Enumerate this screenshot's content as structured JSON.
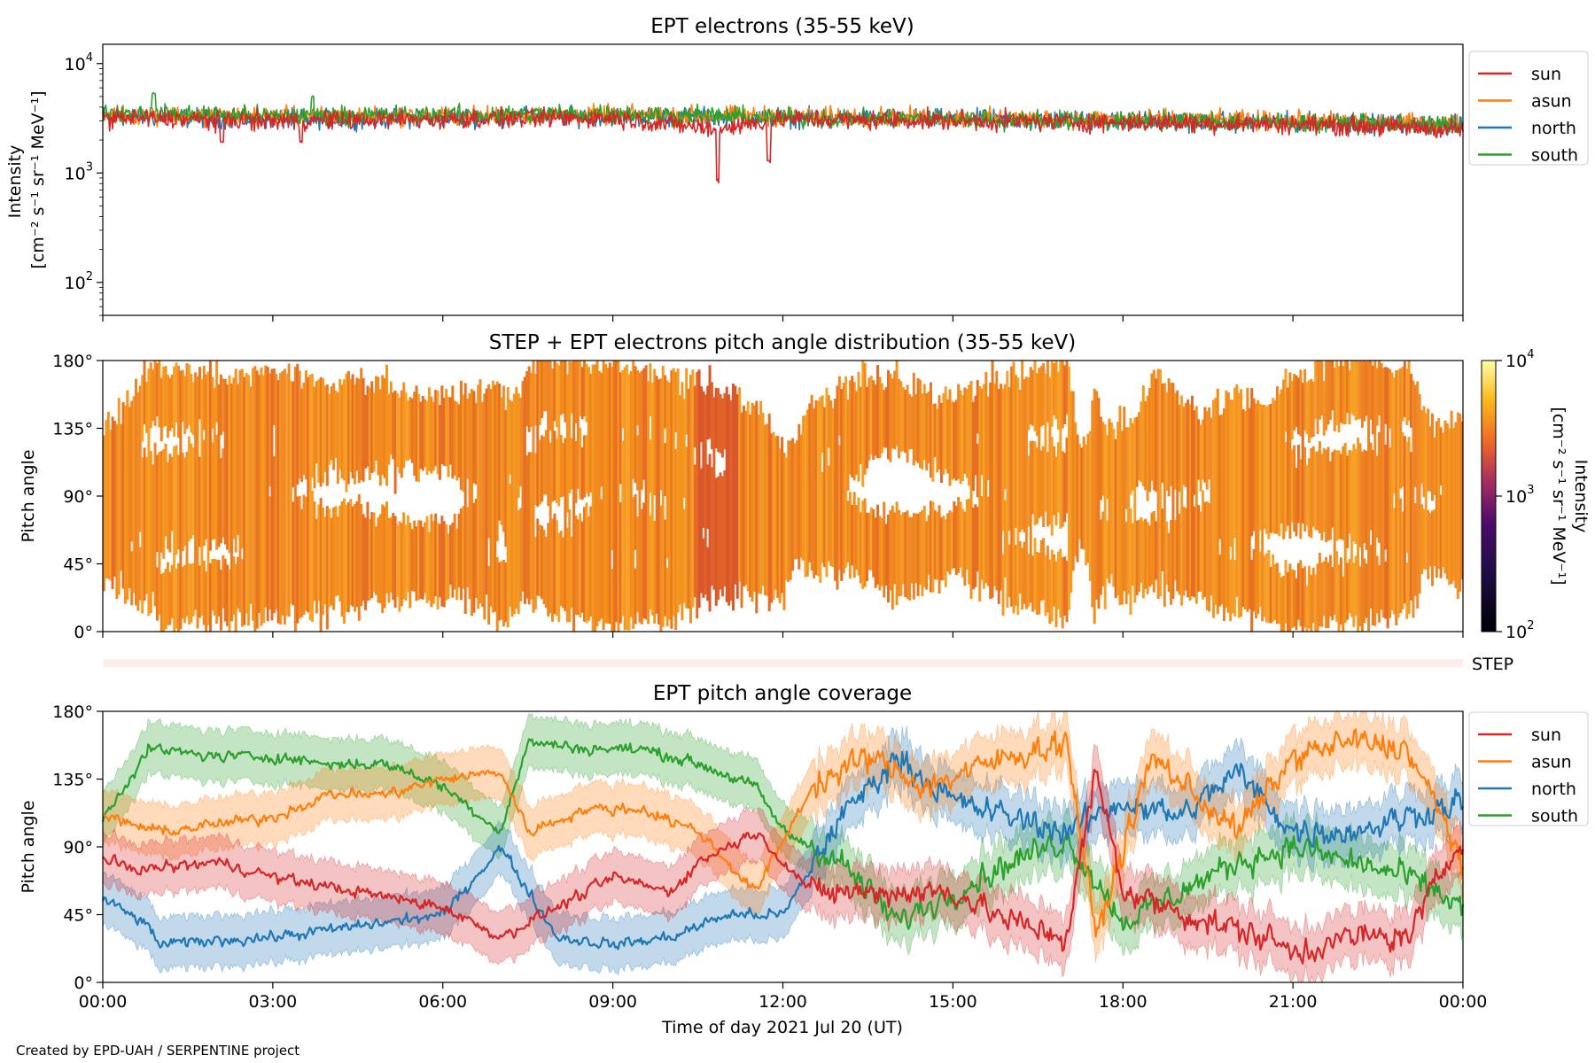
{
  "footer": {
    "credit": "Created by EPD-UAH / SERPENTINE project"
  },
  "colors": {
    "sun": "#d62728",
    "asun": "#ff7f0e",
    "north": "#1f77b4",
    "south": "#2ca02c"
  },
  "chart_data": [
    {
      "type": "line",
      "title": "EPT electrons (35-55 keV)",
      "ylabel_lines": [
        "Intensity",
        "[cm⁻² s⁻¹ sr⁻¹ MeV⁻¹]"
      ],
      "yscale": "log",
      "ylim": [
        50,
        15000
      ],
      "yticks": [
        {
          "value": 100,
          "base": "10",
          "exp": "2"
        },
        {
          "value": 1000,
          "base": "10",
          "exp": "3"
        },
        {
          "value": 10000,
          "base": "10",
          "exp": "4"
        }
      ],
      "xlim_hours": [
        0,
        24
      ],
      "legend": "outside-right-top",
      "series": [
        {
          "name": "sun",
          "color": "#d62728",
          "keypoints": [
            [
              0,
              3200
            ],
            [
              3,
              3000
            ],
            [
              6,
              3100
            ],
            [
              9,
              3200
            ],
            [
              10.8,
              2500
            ],
            [
              12,
              3100
            ],
            [
              15,
              3000
            ],
            [
              18,
              2900
            ],
            [
              21,
              2800
            ],
            [
              24,
              2500
            ]
          ],
          "dips": [
            [
              10.85,
              800
            ],
            [
              11.75,
              1200
            ],
            [
              2.1,
              1700
            ],
            [
              3.5,
              1800
            ]
          ]
        },
        {
          "name": "asun",
          "color": "#ff7f0e",
          "keypoints": [
            [
              0,
              3400
            ],
            [
              3,
              3300
            ],
            [
              6,
              3300
            ],
            [
              9,
              3400
            ],
            [
              12,
              3300
            ],
            [
              15,
              3200
            ],
            [
              18,
              3100
            ],
            [
              21,
              3000
            ],
            [
              24,
              2800
            ]
          ]
        },
        {
          "name": "north",
          "color": "#1f77b4",
          "keypoints": [
            [
              0,
              3300
            ],
            [
              3,
              3100
            ],
            [
              6,
              3200
            ],
            [
              9,
              3300
            ],
            [
              12,
              3200
            ],
            [
              15,
              3100
            ],
            [
              18,
              3000
            ],
            [
              21,
              2900
            ],
            [
              24,
              2700
            ]
          ]
        },
        {
          "name": "south",
          "color": "#2ca02c",
          "keypoints": [
            [
              0,
              3600
            ],
            [
              3,
              3300
            ],
            [
              6,
              3400
            ],
            [
              9,
              3500
            ],
            [
              12,
              3200
            ],
            [
              15,
              3100
            ],
            [
              18,
              3000
            ],
            [
              21,
              2900
            ],
            [
              24,
              2700
            ]
          ],
          "peaks": [
            [
              0.9,
              5500
            ],
            [
              3.7,
              5300
            ]
          ]
        }
      ]
    },
    {
      "type": "heatmap",
      "title": "STEP + EPT electrons pitch angle distribution (35-55 keV)",
      "ylabel": "Pitch angle",
      "ylim_deg": [
        0,
        180
      ],
      "yticks": [
        "0°",
        "45°",
        "90°",
        "135°",
        "180°"
      ],
      "colorbar": {
        "scale": "log",
        "range": [
          100,
          10000
        ],
        "label_lines": [
          "Intensity",
          "[cm⁻² s⁻¹ sr⁻¹ MeV⁻¹]"
        ],
        "ticks": [
          {
            "value": 100,
            "base": "10",
            "exp": "2"
          },
          {
            "value": 1000,
            "base": "10",
            "exp": "3"
          },
          {
            "value": 10000,
            "base": "10",
            "exp": "4"
          }
        ],
        "colormap": "plasma"
      },
      "cell_value": 3000
    },
    {
      "type": "heatmap",
      "title": "",
      "label": "STEP",
      "cell_value": 150
    },
    {
      "type": "line",
      "title": "EPT pitch angle coverage",
      "ylabel": "Pitch angle",
      "ylim_deg": [
        0,
        180
      ],
      "yticks": [
        "0°",
        "45°",
        "90°",
        "135°",
        "180°"
      ],
      "xlabel": "Time of day 2021 Jul 20 (UT)",
      "xticks": [
        "00:00",
        "03:00",
        "06:00",
        "09:00",
        "12:00",
        "15:00",
        "18:00",
        "21:00",
        "00:00"
      ],
      "legend": "outside-right-top",
      "series": [
        {
          "name": "sun",
          "color": "#d62728",
          "keypoints": [
            [
              0,
              80
            ],
            [
              0.7,
              75
            ],
            [
              2,
              80
            ],
            [
              3,
              70
            ],
            [
              4.5,
              60
            ],
            [
              6,
              50
            ],
            [
              7,
              30
            ],
            [
              8,
              50
            ],
            [
              9,
              70
            ],
            [
              10,
              60
            ],
            [
              10.5,
              80
            ],
            [
              11.5,
              100
            ],
            [
              12.5,
              60
            ],
            [
              13.5,
              60
            ],
            [
              15,
              60
            ],
            [
              16,
              40
            ],
            [
              17,
              30
            ],
            [
              17.5,
              140
            ],
            [
              18,
              60
            ],
            [
              19.5,
              40
            ],
            [
              20.5,
              30
            ],
            [
              21,
              20
            ],
            [
              22,
              30
            ],
            [
              23,
              30
            ],
            [
              24,
              100
            ]
          ]
        },
        {
          "name": "asun",
          "color": "#ff7f0e",
          "keypoints": [
            [
              0,
              110
            ],
            [
              1,
              100
            ],
            [
              2,
              105
            ],
            [
              3,
              110
            ],
            [
              4,
              125
            ],
            [
              5,
              125
            ],
            [
              6,
              135
            ],
            [
              7,
              140
            ],
            [
              7.5,
              100
            ],
            [
              8.5,
              115
            ],
            [
              9.5,
              115
            ],
            [
              10.5,
              100
            ],
            [
              11.5,
              60
            ],
            [
              12.5,
              130
            ],
            [
              13.5,
              150
            ],
            [
              14.5,
              130
            ],
            [
              16,
              150
            ],
            [
              17,
              160
            ],
            [
              17.5,
              30
            ],
            [
              18.5,
              150
            ],
            [
              20,
              100
            ],
            [
              21,
              150
            ],
            [
              22,
              160
            ],
            [
              23,
              155
            ],
            [
              24,
              80
            ]
          ]
        },
        {
          "name": "north",
          "color": "#1f77b4",
          "keypoints": [
            [
              0,
              55
            ],
            [
              0.7,
              40
            ],
            [
              1,
              25
            ],
            [
              2,
              28
            ],
            [
              3,
              30
            ],
            [
              4,
              35
            ],
            [
              5,
              40
            ],
            [
              6,
              45
            ],
            [
              7,
              90
            ],
            [
              8,
              30
            ],
            [
              9,
              25
            ],
            [
              10,
              30
            ],
            [
              11,
              45
            ],
            [
              12,
              45
            ],
            [
              13,
              110
            ],
            [
              14,
              150
            ],
            [
              15,
              120
            ],
            [
              16,
              110
            ],
            [
              17,
              100
            ],
            [
              18,
              120
            ],
            [
              19,
              110
            ],
            [
              20,
              140
            ],
            [
              21,
              100
            ],
            [
              22,
              100
            ],
            [
              23,
              110
            ],
            [
              24,
              120
            ]
          ]
        },
        {
          "name": "south",
          "color": "#2ca02c",
          "keypoints": [
            [
              0,
              110
            ],
            [
              0.8,
              155
            ],
            [
              2,
              150
            ],
            [
              3,
              150
            ],
            [
              4,
              145
            ],
            [
              5,
              145
            ],
            [
              6,
              130
            ],
            [
              7,
              100
            ],
            [
              7.5,
              160
            ],
            [
              8.5,
              155
            ],
            [
              9.5,
              155
            ],
            [
              10.5,
              145
            ],
            [
              11.5,
              130
            ],
            [
              12,
              100
            ],
            [
              13,
              80
            ],
            [
              14,
              40
            ],
            [
              15,
              60
            ],
            [
              16,
              80
            ],
            [
              17,
              95
            ],
            [
              18,
              40
            ],
            [
              19,
              60
            ],
            [
              20,
              80
            ],
            [
              21,
              90
            ],
            [
              22,
              80
            ],
            [
              23,
              70
            ],
            [
              24,
              50
            ]
          ]
        }
      ]
    }
  ]
}
